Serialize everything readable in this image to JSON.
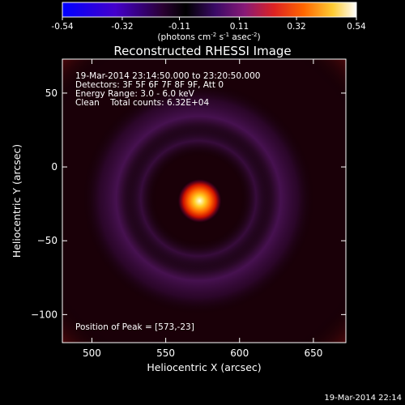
{
  "colorbar": {
    "ticks": [
      "-0.54",
      "-0.32",
      "-0.11",
      "0.11",
      "0.32",
      "0.54"
    ],
    "tick_values": [
      -0.54,
      -0.32,
      -0.11,
      0.11,
      0.32,
      0.54
    ],
    "range": [
      -0.54,
      0.54
    ],
    "units_text": "(photons cm",
    "units_exp1": "-2",
    "units_s": " s",
    "units_exp2": "-1",
    "units_asec": " asec",
    "units_exp3": "-2",
    "units_close": ")",
    "colors": [
      "#0000ff",
      "#6600cc",
      "#330044",
      "#000000",
      "#551199",
      "#aa2255",
      "#ff3300",
      "#ff9900",
      "#ffff99",
      "#ffffff"
    ]
  },
  "chart_data": {
    "type": "heatmap",
    "title": "Reconstructed RHESSI Image",
    "xlabel": "Heliocentric X (arcsec)",
    "ylabel": "Heliocentric Y (arcsec)",
    "xlim": [
      480,
      672
    ],
    "ylim": [
      -119,
      73
    ],
    "xticks": [
      500,
      550,
      600,
      650
    ],
    "yticks": [
      50,
      0,
      -50,
      -100
    ],
    "xtick_labels": [
      "500",
      "550",
      "600",
      "650"
    ],
    "ytick_labels": [
      "50",
      "0",
      "−50",
      "−100"
    ],
    "peak": {
      "x": 573,
      "y": -23
    },
    "info_lines": [
      "19-Mar-2014 23:14:50.000 to 23:20:50.000",
      "Detectors: 3F 5F 6F 7F 8F 9F, Att 0",
      "Energy Range: 3.0 - 6.0 keV",
      "Clean    Total counts: 6.32E+04"
    ],
    "peak_text": "Position of Peak = [573,-23]"
  },
  "timestamp": "19-Mar-2014 22:14"
}
